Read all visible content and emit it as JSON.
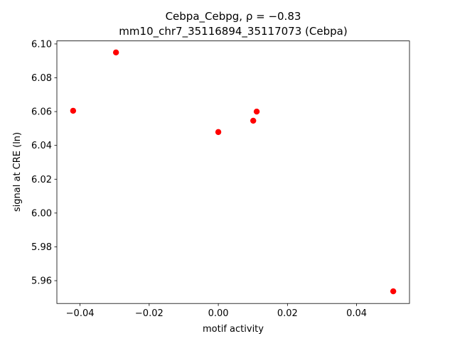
{
  "chart_data": {
    "type": "scatter",
    "title": "Cebpa_Cebpg, ρ = −0.83",
    "subtitle": "mm10_chr7_35116894_35117073 (Cebpa)",
    "x_label": "motif activity",
    "y_label": "signal at CRE (ln)",
    "color": "#ff0000",
    "x": [
      -0.042,
      -0.0296,
      0.0,
      0.0101,
      0.0111,
      0.0506
    ],
    "values": [
      6.0605,
      6.095,
      6.0479,
      6.0546,
      6.06,
      5.9537
    ],
    "xlim": [
      -0.0467,
      0.0553
    ],
    "ylim": [
      5.9465,
      6.1018
    ],
    "xticks": [
      {
        "value": -0.04,
        "label": "−0.04"
      },
      {
        "value": -0.02,
        "label": "−0.02"
      },
      {
        "value": 0,
        "label": "0.00"
      },
      {
        "value": 0.02,
        "label": "0.02"
      },
      {
        "value": 0.04,
        "label": "0.04"
      }
    ],
    "yticks": [
      {
        "value": 5.96,
        "label": "5.96"
      },
      {
        "value": 5.98,
        "label": "5.98"
      },
      {
        "value": 6.0,
        "label": "6.00"
      },
      {
        "value": 6.02,
        "label": "6.02"
      },
      {
        "value": 6.04,
        "label": "6.04"
      },
      {
        "value": 6.06,
        "label": "6.06"
      },
      {
        "value": 6.08,
        "label": "6.08"
      },
      {
        "value": 6.1,
        "label": "6.10"
      }
    ],
    "grid": false
  }
}
